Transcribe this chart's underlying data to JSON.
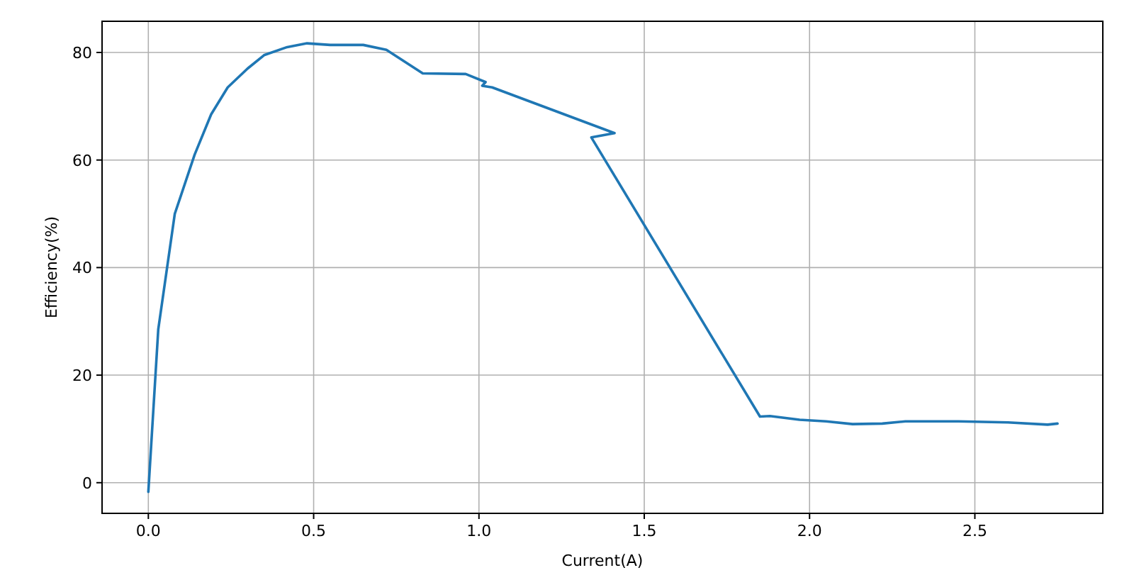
{
  "chart_data": {
    "type": "line",
    "xlabel": "Current(A)",
    "ylabel": "Efficiency(%)",
    "x": [
      0,
      0.03,
      0.08,
      0.14,
      0.19,
      0.24,
      0.3,
      0.35,
      0.42,
      0.48,
      0.55,
      0.65,
      0.72,
      0.83,
      0.96,
      1.02,
      1.01,
      1.04,
      1.41,
      1.34,
      1.85,
      1.88,
      1.97,
      2.05,
      2.13,
      2.22,
      2.29,
      2.45,
      2.6,
      2.72,
      2.75
    ],
    "series": [
      {
        "color": "#1f77b4",
        "values": [
          -1.7,
          28.5,
          50,
          61,
          68.5,
          73.5,
          77,
          79.5,
          81,
          81.7,
          81.4,
          81.4,
          80.5,
          76.1,
          76,
          74.5,
          73.8,
          73.5,
          65,
          64.2,
          12.3,
          12.4,
          11.7,
          11.4,
          10.9,
          11,
          11.4,
          11.4,
          11.2,
          10.8,
          11
        ]
      }
    ],
    "xlim": [
      -0.14,
      2.887
    ],
    "ylim": [
      -5.7,
      85.8
    ],
    "xticks": [
      {
        "value": 0,
        "label": "0.0"
      },
      0.5,
      {
        "value": 1,
        "label": "1.0"
      },
      1.5,
      {
        "value": 2,
        "label": "2.0"
      },
      2.5
    ],
    "yticks": [
      0,
      20,
      40,
      60,
      80
    ],
    "grid": true,
    "line_style": "solid",
    "marker": "none"
  }
}
